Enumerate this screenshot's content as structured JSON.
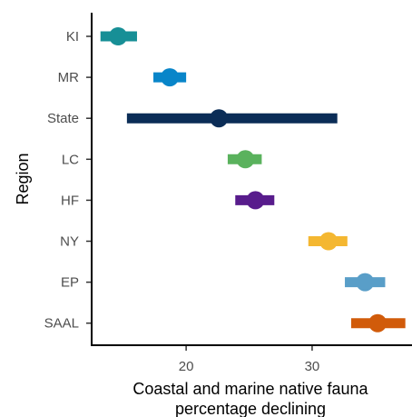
{
  "chart_data": {
    "type": "dot-range",
    "xlabel": [
      "Coastal and marine native fauna",
      "percentage declining"
    ],
    "ylabel": "Region",
    "xlim": [
      12.5,
      38
    ],
    "xticks": [
      20,
      30
    ],
    "grid": false,
    "legend": "none",
    "series": [
      {
        "category": "KI",
        "value": 14.6,
        "low": 13.2,
        "high": 16.1,
        "color": "#178f96"
      },
      {
        "category": "MR",
        "value": 18.7,
        "low": 17.4,
        "high": 20.0,
        "color": "#0885c9"
      },
      {
        "category": "State",
        "value": 22.6,
        "low": 15.3,
        "high": 32.0,
        "color": "#0b2d57"
      },
      {
        "category": "LC",
        "value": 24.7,
        "low": 23.3,
        "high": 26.0,
        "color": "#5ab25d"
      },
      {
        "category": "HF",
        "value": 25.5,
        "low": 23.9,
        "high": 27.0,
        "color": "#581c8c"
      },
      {
        "category": "NY",
        "value": 31.3,
        "low": 29.7,
        "high": 32.8,
        "color": "#f4b731"
      },
      {
        "category": "EP",
        "value": 34.2,
        "low": 32.6,
        "high": 35.8,
        "color": "#599ec8"
      },
      {
        "category": "SAAL",
        "value": 35.2,
        "low": 33.1,
        "high": 37.4,
        "color": "#d15b0a"
      }
    ]
  }
}
